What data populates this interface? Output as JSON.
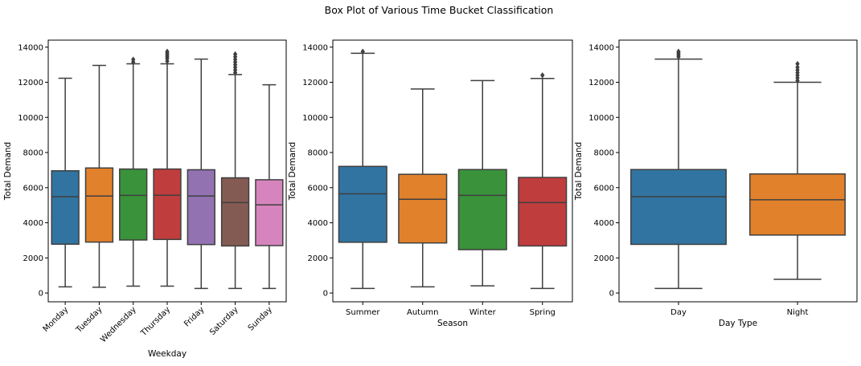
{
  "figure": {
    "title": "Box Plot of Various Time Bucket Classification"
  },
  "chart_data": [
    {
      "type": "box",
      "xlabel": "Weekday",
      "ylabel": "Total Demand",
      "ylim": [
        -500,
        14400
      ],
      "yticks": [
        0,
        2000,
        4000,
        6000,
        8000,
        10000,
        12000,
        14000
      ],
      "ytick_labels": [
        "0",
        "2000",
        "4000",
        "6000",
        "8000",
        "10000",
        "12000",
        "14000"
      ],
      "rotate_xticks": true,
      "categories": [
        "Monday",
        "Tuesday",
        "Wednesday",
        "Thursday",
        "Friday",
        "Saturday",
        "Sunday"
      ],
      "colors": [
        "#3274a1",
        "#e1812c",
        "#3a923a",
        "#c03d3e",
        "#9372b2",
        "#845b53",
        "#d684bd"
      ],
      "boxes": [
        {
          "whislo": 350,
          "q1": 2780,
          "med": 5480,
          "q3": 6960,
          "whishi": 12230,
          "fliers": []
        },
        {
          "whislo": 330,
          "q1": 2900,
          "med": 5520,
          "q3": 7120,
          "whishi": 12960,
          "fliers": []
        },
        {
          "whislo": 390,
          "q1": 3020,
          "med": 5560,
          "q3": 7060,
          "whishi": 13050,
          "fliers": [
            13150,
            13300
          ]
        },
        {
          "whislo": 390,
          "q1": 3050,
          "med": 5570,
          "q3": 7060,
          "whishi": 13050,
          "fliers": [
            13200,
            13350,
            13450,
            13550,
            13650,
            13750
          ]
        },
        {
          "whislo": 260,
          "q1": 2760,
          "med": 5520,
          "q3": 7020,
          "whishi": 13320,
          "fliers": []
        },
        {
          "whislo": 260,
          "q1": 2680,
          "med": 5150,
          "q3": 6560,
          "whishi": 12440,
          "fliers": [
            12550,
            12700,
            12850,
            13000,
            13150,
            13300,
            13450,
            13600
          ]
        },
        {
          "whislo": 260,
          "q1": 2700,
          "med": 5020,
          "q3": 6450,
          "whishi": 11860,
          "fliers": []
        }
      ]
    },
    {
      "type": "box",
      "xlabel": "Season",
      "ylabel": "Total Demand",
      "ylim": [
        -500,
        14400
      ],
      "yticks": [
        0,
        2000,
        4000,
        6000,
        8000,
        10000,
        12000,
        14000
      ],
      "ytick_labels": [
        "0",
        "2000",
        "4000",
        "6000",
        "8000",
        "10000",
        "12000",
        "14000"
      ],
      "rotate_xticks": false,
      "categories": [
        "Summer",
        "Autumn",
        "Winter",
        "Spring"
      ],
      "colors": [
        "#3274a1",
        "#e1812c",
        "#3a923a",
        "#c03d3e"
      ],
      "boxes": [
        {
          "whislo": 260,
          "q1": 2890,
          "med": 5650,
          "q3": 7210,
          "whishi": 13650,
          "fliers": [
            13750
          ]
        },
        {
          "whislo": 350,
          "q1": 2850,
          "med": 5340,
          "q3": 6760,
          "whishi": 11620,
          "fliers": []
        },
        {
          "whislo": 410,
          "q1": 2470,
          "med": 5560,
          "q3": 7030,
          "whishi": 12100,
          "fliers": []
        },
        {
          "whislo": 260,
          "q1": 2680,
          "med": 5150,
          "q3": 6580,
          "whishi": 12220,
          "fliers": [
            12400
          ]
        }
      ]
    },
    {
      "type": "box",
      "xlabel": "Day Type",
      "ylabel": "Total Demand",
      "ylim": [
        -500,
        14400
      ],
      "yticks": [
        0,
        2000,
        4000,
        6000,
        8000,
        10000,
        12000,
        14000
      ],
      "ytick_labels": [
        "0",
        "2000",
        "4000",
        "6000",
        "8000",
        "10000",
        "12000",
        "14000"
      ],
      "rotate_xticks": false,
      "categories": [
        "Day",
        "Night"
      ],
      "colors": [
        "#3274a1",
        "#e1812c"
      ],
      "boxes": [
        {
          "whislo": 260,
          "q1": 2770,
          "med": 5480,
          "q3": 7030,
          "whishi": 13320,
          "fliers": [
            13450,
            13550,
            13650,
            13750
          ]
        },
        {
          "whislo": 780,
          "q1": 3300,
          "med": 5310,
          "q3": 6780,
          "whishi": 12000,
          "fliers": [
            12100,
            12250,
            12400,
            12550,
            12700,
            12850,
            13050
          ]
        }
      ]
    }
  ]
}
